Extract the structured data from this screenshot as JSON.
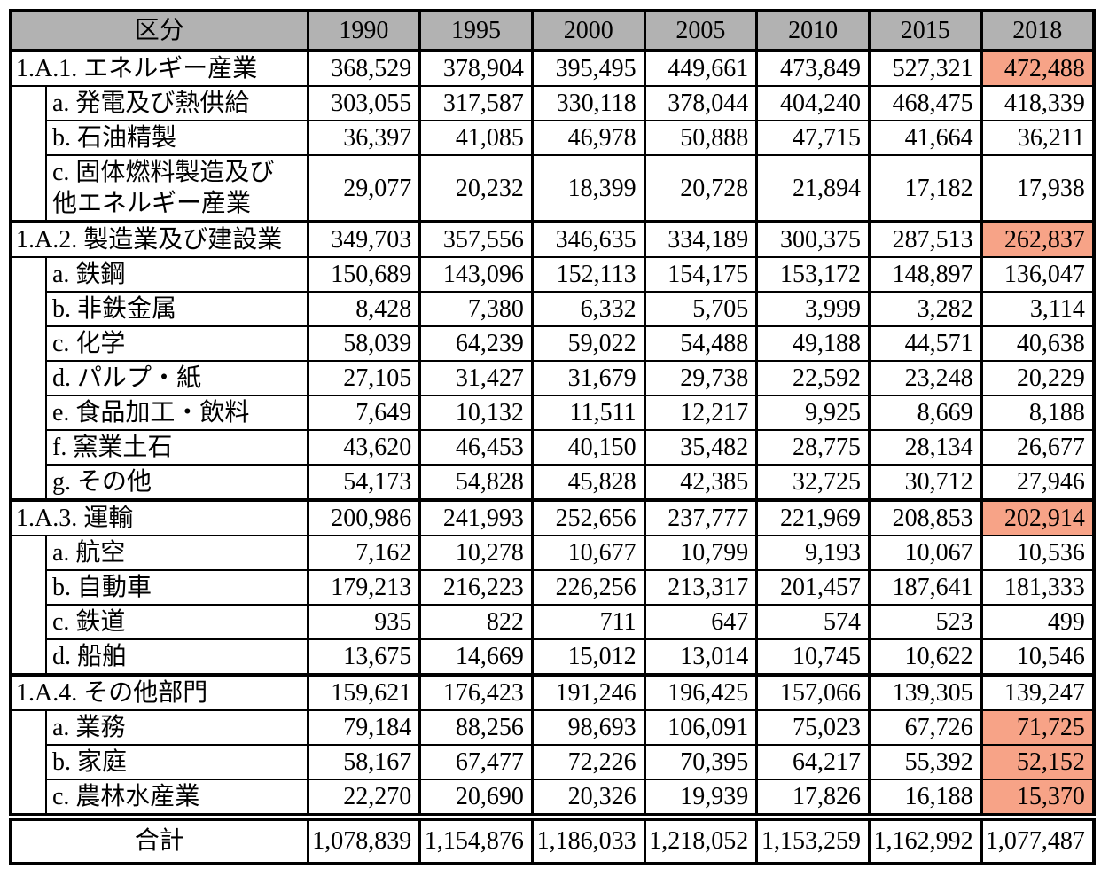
{
  "table": {
    "colors": {
      "header_bg": "#b2b2b2",
      "highlight_bg": "#f7a387"
    },
    "header": {
      "category_label": "区分",
      "years": [
        "1990",
        "1995",
        "2000",
        "2005",
        "2010",
        "2015",
        "2018"
      ]
    },
    "groups": [
      {
        "label": "1.A.1. エネルギー産業",
        "values": [
          "368,529",
          "378,904",
          "395,495",
          "449,661",
          "473,849",
          "527,321",
          "472,488"
        ],
        "highlight_2018": true,
        "children": [
          {
            "label": "a. 発電及び熱供給",
            "values": [
              "303,055",
              "317,587",
              "330,118",
              "378,044",
              "404,240",
              "468,475",
              "418,339"
            ],
            "highlight_2018": false
          },
          {
            "label": "b. 石油精製",
            "values": [
              "36,397",
              "41,085",
              "46,978",
              "50,888",
              "47,715",
              "41,664",
              "36,211"
            ],
            "highlight_2018": false
          },
          {
            "label": "c. 固体燃料製造及び\n他エネルギー産業",
            "values": [
              "29,077",
              "20,232",
              "18,399",
              "20,728",
              "21,894",
              "17,182",
              "17,938"
            ],
            "highlight_2018": false
          }
        ]
      },
      {
        "label": "1.A.2. 製造業及び建設業",
        "values": [
          "349,703",
          "357,556",
          "346,635",
          "334,189",
          "300,375",
          "287,513",
          "262,837"
        ],
        "highlight_2018": true,
        "children": [
          {
            "label": "a. 鉄鋼",
            "values": [
              "150,689",
              "143,096",
              "152,113",
              "154,175",
              "153,172",
              "148,897",
              "136,047"
            ],
            "highlight_2018": false
          },
          {
            "label": "b. 非鉄金属",
            "values": [
              "8,428",
              "7,380",
              "6,332",
              "5,705",
              "3,999",
              "3,282",
              "3,114"
            ],
            "highlight_2018": false
          },
          {
            "label": "c. 化学",
            "values": [
              "58,039",
              "64,239",
              "59,022",
              "54,488",
              "49,188",
              "44,571",
              "40,638"
            ],
            "highlight_2018": false
          },
          {
            "label": "d. パルプ・紙",
            "values": [
              "27,105",
              "31,427",
              "31,679",
              "29,738",
              "22,592",
              "23,248",
              "20,229"
            ],
            "highlight_2018": false
          },
          {
            "label": "e. 食品加工・飲料",
            "values": [
              "7,649",
              "10,132",
              "11,511",
              "12,217",
              "9,925",
              "8,669",
              "8,188"
            ],
            "highlight_2018": false
          },
          {
            "label": "f. 窯業土石",
            "values": [
              "43,620",
              "46,453",
              "40,150",
              "35,482",
              "28,775",
              "28,134",
              "26,677"
            ],
            "highlight_2018": false
          },
          {
            "label": "g. その他",
            "values": [
              "54,173",
              "54,828",
              "45,828",
              "42,385",
              "32,725",
              "30,712",
              "27,946"
            ],
            "highlight_2018": false
          }
        ]
      },
      {
        "label": "1.A.3. 運輸",
        "values": [
          "200,986",
          "241,993",
          "252,656",
          "237,777",
          "221,969",
          "208,853",
          "202,914"
        ],
        "highlight_2018": true,
        "children": [
          {
            "label": "a. 航空",
            "values": [
              "7,162",
              "10,278",
              "10,677",
              "10,799",
              "9,193",
              "10,067",
              "10,536"
            ],
            "highlight_2018": false
          },
          {
            "label": "b. 自動車",
            "values": [
              "179,213",
              "216,223",
              "226,256",
              "213,317",
              "201,457",
              "187,641",
              "181,333"
            ],
            "highlight_2018": false
          },
          {
            "label": "c. 鉄道",
            "values": [
              "935",
              "822",
              "711",
              "647",
              "574",
              "523",
              "499"
            ],
            "highlight_2018": false
          },
          {
            "label": "d. 船舶",
            "values": [
              "13,675",
              "14,669",
              "15,012",
              "13,014",
              "10,745",
              "10,622",
              "10,546"
            ],
            "highlight_2018": false
          }
        ]
      },
      {
        "label": "1.A.4. その他部門",
        "values": [
          "159,621",
          "176,423",
          "191,246",
          "196,425",
          "157,066",
          "139,305",
          "139,247"
        ],
        "highlight_2018": false,
        "children": [
          {
            "label": "a. 業務",
            "values": [
              "79,184",
              "88,256",
              "98,693",
              "106,091",
              "75,023",
              "67,726",
              "71,725"
            ],
            "highlight_2018": true
          },
          {
            "label": "b. 家庭",
            "values": [
              "58,167",
              "67,477",
              "72,226",
              "70,395",
              "64,217",
              "55,392",
              "52,152"
            ],
            "highlight_2018": true
          },
          {
            "label": "c. 農林水産業",
            "values": [
              "22,270",
              "20,690",
              "20,326",
              "19,939",
              "17,826",
              "16,188",
              "15,370"
            ],
            "highlight_2018": true
          }
        ]
      }
    ],
    "total": {
      "label": "合計",
      "values": [
        "1,078,839",
        "1,154,876",
        "1,186,033",
        "1,218,052",
        "1,153,259",
        "1,162,992",
        "1,077,487"
      ]
    }
  }
}
